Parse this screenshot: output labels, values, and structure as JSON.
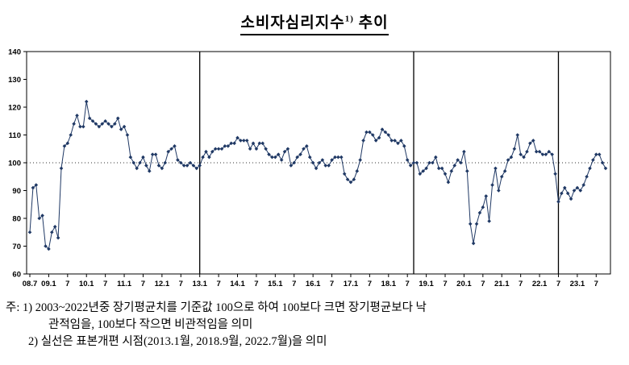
{
  "title": {
    "main": "소비자심리지수",
    "sup": "1)",
    "tail": " 추이"
  },
  "notes": {
    "line1": "주: 1) 2003~2022년중 장기평균치를 기준값 100으로 하여 100보다 크면 장기평균보다 낙",
    "line2": "관적임을, 100보다 작으면 비관적임을 의미",
    "line3": "2) 실선은 표본개편 시점(2013.1월, 2018.9월, 2022.7월)을 의미"
  },
  "chart_data": {
    "type": "line",
    "title": "소비자심리지수1) 추이",
    "x_start": "2008.07",
    "x_end": "2023.10",
    "frequency": "monthly",
    "ylim": [
      60,
      140
    ],
    "yticks": [
      60,
      70,
      80,
      90,
      100,
      110,
      120,
      130,
      140
    ],
    "baseline": 100,
    "line_color": "#1f3864",
    "grid": false,
    "legend": "none",
    "xticks": [
      {
        "label": "08.7",
        "index": 0
      },
      {
        "label": "09.1",
        "index": 6
      },
      {
        "label": "7",
        "index": 12
      },
      {
        "label": "10.1",
        "index": 18
      },
      {
        "label": "7",
        "index": 24
      },
      {
        "label": "11.1",
        "index": 30
      },
      {
        "label": "7",
        "index": 36
      },
      {
        "label": "12.1",
        "index": 42
      },
      {
        "label": "7",
        "index": 48
      },
      {
        "label": "13.1",
        "index": 54
      },
      {
        "label": "7",
        "index": 60
      },
      {
        "label": "14.1",
        "index": 66
      },
      {
        "label": "7",
        "index": 72
      },
      {
        "label": "15.1",
        "index": 78
      },
      {
        "label": "7",
        "index": 84
      },
      {
        "label": "16.1",
        "index": 90
      },
      {
        "label": "7",
        "index": 96
      },
      {
        "label": "17.1",
        "index": 102
      },
      {
        "label": "7",
        "index": 108
      },
      {
        "label": "18.1",
        "index": 114
      },
      {
        "label": "7",
        "index": 120
      },
      {
        "label": "19.1",
        "index": 126
      },
      {
        "label": "7",
        "index": 132
      },
      {
        "label": "20.1",
        "index": 138
      },
      {
        "label": "7",
        "index": 144
      },
      {
        "label": "21.1",
        "index": 150
      },
      {
        "label": "7",
        "index": 156
      },
      {
        "label": "22.1",
        "index": 162
      },
      {
        "label": "7",
        "index": 168
      },
      {
        "label": "23.1",
        "index": 174
      },
      {
        "label": "7",
        "index": 180
      }
    ],
    "vlines": [
      {
        "label": "2013.1",
        "index": 54
      },
      {
        "label": "2018.9",
        "index": 122
      },
      {
        "label": "2022.7",
        "index": 168
      }
    ],
    "values": [
      75,
      91,
      92,
      80,
      81,
      70,
      69,
      75,
      77,
      73,
      98,
      106,
      107,
      110,
      114,
      117,
      113,
      113,
      122,
      116,
      115,
      114,
      113,
      114,
      115,
      114,
      113,
      114,
      116,
      112,
      113,
      110,
      102,
      100,
      98,
      100,
      102,
      99,
      97,
      103,
      103,
      99,
      98,
      100,
      104,
      105,
      106,
      101,
      100,
      99,
      99,
      100,
      99,
      98,
      99,
      102,
      104,
      102,
      104,
      105,
      105,
      105,
      106,
      106,
      107,
      107,
      109,
      108,
      108,
      108,
      105,
      107,
      105,
      107,
      107,
      105,
      103,
      102,
      102,
      103,
      101,
      104,
      105,
      99,
      100,
      102,
      103,
      105,
      106,
      102,
      100,
      98,
      100,
      101,
      99,
      99,
      101,
      102,
      102,
      102,
      96,
      94,
      93,
      94,
      97,
      101,
      108,
      111,
      111,
      110,
      108,
      109,
      112,
      111,
      110,
      108,
      108,
      107,
      108,
      106,
      101,
      99,
      100,
      100,
      96,
      97,
      98,
      100,
      100,
      102,
      98,
      98,
      96,
      93,
      97,
      99,
      101,
      100,
      104,
      97,
      78,
      71,
      78,
      82,
      84,
      88,
      79,
      92,
      98,
      90,
      95,
      97,
      101,
      102,
      105,
      110,
      103,
      102,
      104,
      107,
      108,
      104,
      104,
      103,
      103,
      104,
      103,
      96,
      86,
      89,
      91,
      89,
      87,
      90,
      91,
      90,
      92,
      95,
      98,
      101,
      103,
      103,
      100,
      98
    ]
  }
}
